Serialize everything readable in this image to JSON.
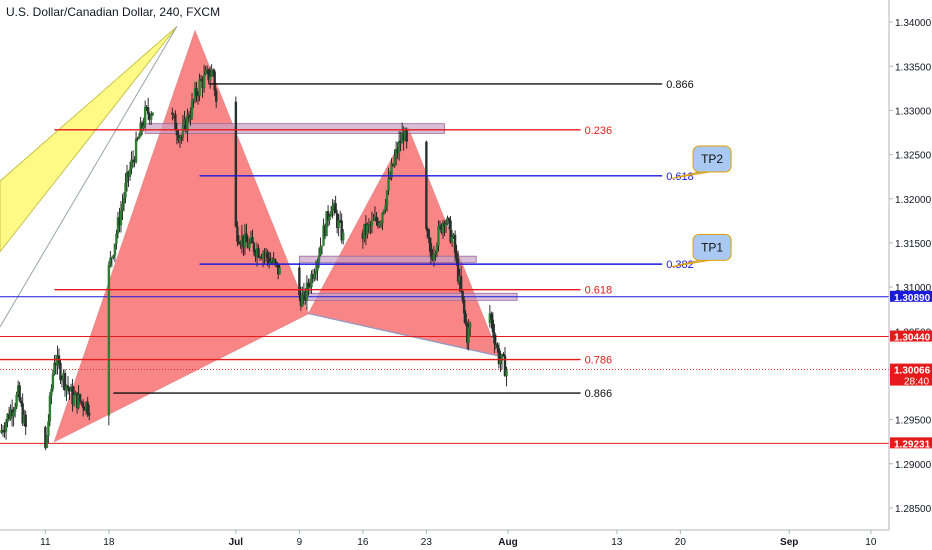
{
  "header": {
    "title": "U.S. Dollar/Canadian Dollar, 240, FXCM"
  },
  "colors": {
    "up": "#2e7d32",
    "down": "#26322b",
    "wick": "#1b1b1b",
    "harmonic_fill": "#f76b6b",
    "harmonic_edge": "#c94040",
    "yellow_fill": "#fffa86",
    "zone_fill": "#c9a3c7",
    "zone_edge": "#9a6a98",
    "blue_line": "#1a1adc",
    "red_line": "#e51b1b",
    "black_line": "#111111",
    "tp_fill": "#a9c9f2",
    "tp_border": "#e0a000"
  },
  "chart_data": {
    "type": "candlestick",
    "symbol": "USD/CAD",
    "timeframe": "240",
    "ylim": [
      1.2825,
      1.3425
    ],
    "yticks": [
      "1.34000",
      "1.33500",
      "1.33000",
      "1.32500",
      "1.32000",
      "1.31500",
      "1.31000",
      "1.30500",
      "1.30000",
      "1.29500",
      "1.29000",
      "1.28500"
    ],
    "xlim": [
      "2018-06-06T00:00",
      "2018-09-12T00:00"
    ],
    "xticks": [
      {
        "date": "2018-06-11",
        "label": "11"
      },
      {
        "date": "2018-06-18",
        "label": "18"
      },
      {
        "date": "2018-07-02",
        "label": "Jul"
      },
      {
        "date": "2018-07-09",
        "label": "9"
      },
      {
        "date": "2018-07-16",
        "label": "16"
      },
      {
        "date": "2018-07-23",
        "label": "23"
      },
      {
        "date": "2018-08-01",
        "label": "Aug"
      },
      {
        "date": "2018-08-13",
        "label": "13"
      },
      {
        "date": "2018-08-20",
        "label": "20"
      },
      {
        "date": "2018-09-01",
        "label": "Sep"
      },
      {
        "date": "2018-09-10",
        "label": "10"
      }
    ],
    "anchors": [
      {
        "date": "2018-06-06T00:00",
        "price": 1.2935
      },
      {
        "date": "2018-06-08T00:00",
        "price": 1.2978
      },
      {
        "date": "2018-06-10T12:00",
        "price": 1.2862
      },
      {
        "date": "2018-06-12T00:00",
        "price": 1.302
      },
      {
        "date": "2018-06-14T00:00",
        "price": 1.2975
      },
      {
        "date": "2018-06-16T12:00",
        "price": 1.2962
      },
      {
        "date": "2018-06-18T00:00",
        "price": 1.312
      },
      {
        "date": "2018-06-20T00:00",
        "price": 1.322
      },
      {
        "date": "2018-06-22T00:00",
        "price": 1.3295
      },
      {
        "date": "2018-06-24T00:00",
        "price": 1.331
      },
      {
        "date": "2018-06-26T00:00",
        "price": 1.327
      },
      {
        "date": "2018-06-28T00:00",
        "price": 1.333
      },
      {
        "date": "2018-06-29T12:00",
        "price": 1.3345
      },
      {
        "date": "2018-07-01T00:00",
        "price": 1.318
      },
      {
        "date": "2018-07-03T00:00",
        "price": 1.315
      },
      {
        "date": "2018-07-05T00:00",
        "price": 1.314
      },
      {
        "date": "2018-07-07T00:00",
        "price": 1.3115
      },
      {
        "date": "2018-07-09T12:00",
        "price": 1.3085
      },
      {
        "date": "2018-07-11T00:00",
        "price": 1.3135
      },
      {
        "date": "2018-07-12T12:00",
        "price": 1.3195
      },
      {
        "date": "2018-07-14T00:00",
        "price": 1.315
      },
      {
        "date": "2018-07-16T00:00",
        "price": 1.316
      },
      {
        "date": "2018-07-18T00:00",
        "price": 1.318
      },
      {
        "date": "2018-07-19T12:00",
        "price": 1.3245
      },
      {
        "date": "2018-07-20T12:00",
        "price": 1.3275
      },
      {
        "date": "2018-07-22T00:00",
        "price": 1.32
      },
      {
        "date": "2018-07-23T12:00",
        "price": 1.3135
      },
      {
        "date": "2018-07-25T00:00",
        "price": 1.318
      },
      {
        "date": "2018-07-26T00:00",
        "price": 1.315
      },
      {
        "date": "2018-07-27T12:00",
        "price": 1.3045
      },
      {
        "date": "2018-07-28T12:00",
        "price": 1.3075
      },
      {
        "date": "2018-07-30T00:00",
        "price": 1.307
      },
      {
        "date": "2018-07-31T00:00",
        "price": 1.302
      },
      {
        "date": "2018-07-31T20:00",
        "price": 1.3007
      }
    ],
    "harmonic_triangles": [
      [
        {
          "date": "2018-06-12T00:00",
          "price": 1.2925
        },
        {
          "date": "2018-06-27T12:00",
          "price": 1.339
        },
        {
          "date": "2018-07-10T00:00",
          "price": 1.307
        }
      ],
      [
        {
          "date": "2018-07-10T00:00",
          "price": 1.307
        },
        {
          "date": "2018-07-21T00:00",
          "price": 1.328
        },
        {
          "date": "2018-07-31T00:00",
          "price": 1.3022
        }
      ]
    ],
    "harmonic_edge": {
      "from": {
        "date": "2018-07-10T00:00",
        "price": 1.307
      },
      "to": {
        "date": "2018-07-31T00:00",
        "price": 1.3022
      }
    },
    "yellow_pattern": [
      {
        "date": "2018-06-06T00:00",
        "price": 1.314
      },
      {
        "date": "2018-06-25T12:00",
        "price": 1.3395
      },
      {
        "date": "2018-06-06T00:00",
        "price": 1.322
      }
    ],
    "yellow_edge_to": {
      "date": "2018-06-06T00:00",
      "price": 1.3055
    },
    "zones": [
      {
        "from": "2018-06-22T00:00",
        "to": "2018-07-25T00:00",
        "top": 1.3285,
        "bottom": 1.3274
      },
      {
        "from": "2018-07-09T00:00",
        "to": "2018-07-28T12:00",
        "top": 1.3135,
        "bottom": 1.3128
      },
      {
        "from": "2018-07-09T00:00",
        "to": "2018-08-02T00:00",
        "top": 1.3093,
        "bottom": 1.3085
      }
    ],
    "fib_lines": [
      {
        "price": 1.333,
        "from": "2018-06-29T00:00",
        "to": "2018-08-18T00:00",
        "color": "black",
        "label": "0.866"
      },
      {
        "price": 1.3278,
        "from": "2018-06-12T00:00",
        "to": "2018-08-09T00:00",
        "color": "red",
        "label": "0.236"
      },
      {
        "price": 1.3226,
        "from": "2018-06-28T00:00",
        "to": "2018-08-18T00:00",
        "color": "blue",
        "label": "0.618"
      },
      {
        "price": 1.3126,
        "from": "2018-06-28T00:00",
        "to": "2018-08-18T00:00",
        "color": "blue",
        "label": "0.382"
      },
      {
        "price": 1.3097,
        "from": "2018-06-12T00:00",
        "to": "2018-08-09T00:00",
        "color": "red",
        "label": "0.618"
      },
      {
        "price": 1.3018,
        "from": "2018-06-06T00:00",
        "to": "2018-08-09T00:00",
        "color": "red",
        "label": "0.786"
      },
      {
        "price": 1.298,
        "from": "2018-06-18T12:00",
        "to": "2018-08-09T00:00",
        "color": "black",
        "label": "0.866"
      }
    ],
    "horizontal_levels": [
      {
        "price": 1.3089,
        "color": "blue",
        "label": "1.30890",
        "style": "solid"
      },
      {
        "price": 1.3044,
        "color": "red",
        "label": "1.30440",
        "style": "solid"
      },
      {
        "price": 1.30066,
        "color": "red",
        "label": "1.30066",
        "style": "dotted",
        "countdown": "28:40"
      },
      {
        "price": 1.29231,
        "color": "red",
        "label": "1.29231",
        "style": "solid"
      }
    ],
    "callouts": [
      {
        "label": "TP2",
        "date": "2018-08-23T12:00",
        "price": 1.3245,
        "tail_date": "2018-08-19T00:00",
        "tail_price": 1.3223
      },
      {
        "label": "TP1",
        "date": "2018-08-23T12:00",
        "price": 1.3145,
        "tail_date": "2018-08-19T00:00",
        "tail_price": 1.3123
      }
    ]
  }
}
